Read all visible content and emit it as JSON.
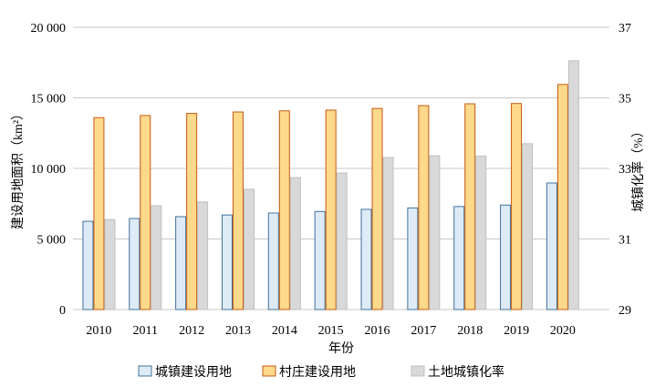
{
  "chart_data": {
    "type": "bar",
    "categories": [
      "2010",
      "2011",
      "2012",
      "2013",
      "2014",
      "2015",
      "2016",
      "2017",
      "2018",
      "2019",
      "2020"
    ],
    "series": [
      {
        "name": "城镇建设用地",
        "axis": "left",
        "fill": "#deebf7",
        "stroke": "#41719c",
        "values": [
          6250,
          6450,
          6580,
          6700,
          6840,
          6950,
          7100,
          7200,
          7300,
          7400,
          8970
        ]
      },
      {
        "name": "村庄建设用地",
        "axis": "left",
        "fill": "#fdd98c",
        "stroke": "#c55a11",
        "values": [
          13600,
          13750,
          13900,
          14000,
          14080,
          14130,
          14250,
          14450,
          14580,
          14600,
          15950
        ]
      },
      {
        "name": "土地城镇化率",
        "axis": "right",
        "fill": "#d9d9d9",
        "stroke": "#bfbfbf",
        "values": [
          31.55,
          31.94,
          32.05,
          32.41,
          32.74,
          32.87,
          33.31,
          33.36,
          33.35,
          33.7,
          36.05
        ]
      }
    ],
    "xlabel": "年份",
    "ylabel": "建设用地面积（km²）",
    "y2label": "城镇化率（%）",
    "ylim": [
      0,
      20000
    ],
    "y2lim": [
      29,
      37
    ],
    "yticks": [
      0,
      5000,
      10000,
      15000,
      20000
    ],
    "ytick_labels": [
      "0",
      "5 000",
      "10 000",
      "15 000",
      "20 000"
    ],
    "y2ticks": [
      29,
      31,
      33,
      35,
      37
    ],
    "y2tick_labels": [
      "29",
      "31",
      "33",
      "35",
      "37"
    ],
    "grid": true,
    "legend": "bottom",
    "gridline_color": "#c8c8c8"
  }
}
